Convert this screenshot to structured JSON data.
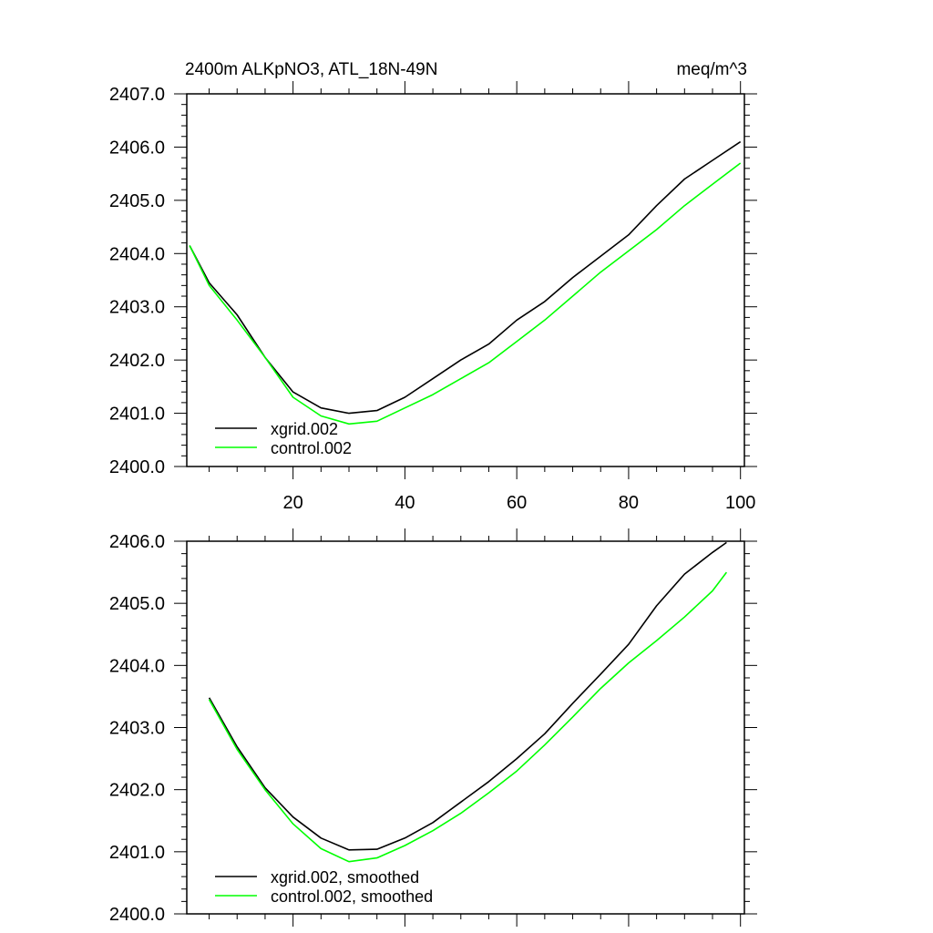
{
  "chart_data": [
    {
      "type": "line",
      "title": "2400m ALKpNO3, ATL_18N-49N",
      "units": "meq/m^3",
      "xlabel": "",
      "ylabel": "",
      "xlim": [
        1,
        100.7
      ],
      "ylim": [
        2400,
        2407
      ],
      "xticks": [
        20,
        40,
        60,
        80,
        100
      ],
      "xtick_labels": [
        "20",
        "40",
        "60",
        "80",
        "100"
      ],
      "yticks": [
        2400,
        2401,
        2402,
        2403,
        2404,
        2405,
        2406,
        2407
      ],
      "ytick_labels": [
        "2400.0",
        "2401.0",
        "2402.0",
        "2403.0",
        "2404.0",
        "2405.0",
        "2406.0",
        "2407.0"
      ],
      "grid": false,
      "legend_position": "bottom-left",
      "x": [
        1.5,
        5,
        10,
        15,
        20,
        25,
        30,
        35,
        40,
        45,
        50,
        55,
        60,
        65,
        70,
        75,
        80,
        85,
        90,
        95,
        100
      ],
      "series": [
        {
          "name": "xgrid.002",
          "color": "#000000",
          "values": [
            2404.15,
            2403.45,
            2402.85,
            2402.05,
            2401.4,
            2401.1,
            2401.0,
            2401.05,
            2401.3,
            2401.65,
            2402.0,
            2402.3,
            2402.75,
            2403.1,
            2403.55,
            2403.95,
            2404.35,
            2404.9,
            2405.4,
            2405.75,
            2406.1
          ]
        },
        {
          "name": "control.002",
          "color": "#00ff00",
          "values": [
            2404.15,
            2403.4,
            2402.75,
            2402.05,
            2401.3,
            2400.95,
            2400.8,
            2400.85,
            2401.1,
            2401.35,
            2401.65,
            2401.95,
            2402.35,
            2402.75,
            2403.2,
            2403.65,
            2404.05,
            2404.45,
            2404.9,
            2405.3,
            2405.7
          ]
        }
      ]
    },
    {
      "type": "line",
      "title": "",
      "xlabel": "",
      "ylabel": "",
      "xlim": [
        1,
        100.7
      ],
      "ylim": [
        2400,
        2406
      ],
      "xticks": [
        20,
        40,
        60,
        80,
        100
      ],
      "yticks": [
        2400,
        2401,
        2402,
        2403,
        2404,
        2405,
        2406
      ],
      "ytick_labels": [
        "2400.0",
        "2401.0",
        "2402.0",
        "2403.0",
        "2404.0",
        "2405.0",
        "2406.0"
      ],
      "grid": false,
      "legend_position": "bottom-left",
      "x": [
        5,
        10,
        15,
        20,
        25,
        30,
        35,
        40,
        45,
        50,
        55,
        60,
        65,
        70,
        75,
        80,
        85,
        90,
        95,
        97.5
      ],
      "series": [
        {
          "name": "xgrid.002, smoothed",
          "color": "#000000",
          "values": [
            2403.48,
            2402.69,
            2402.03,
            2401.56,
            2401.22,
            2401.03,
            2401.04,
            2401.22,
            2401.47,
            2401.8,
            2402.13,
            2402.5,
            2402.9,
            2403.39,
            2403.86,
            2404.34,
            2404.96,
            2405.47,
            2405.82,
            2405.98
          ]
        },
        {
          "name": "control.002, smoothed",
          "color": "#00ff00",
          "values": [
            2403.45,
            2402.65,
            2402.0,
            2401.45,
            2401.05,
            2400.84,
            2400.9,
            2401.1,
            2401.34,
            2401.62,
            2401.95,
            2402.3,
            2402.72,
            2403.17,
            2403.63,
            2404.04,
            2404.4,
            2404.78,
            2405.2,
            2405.5
          ]
        }
      ]
    }
  ]
}
